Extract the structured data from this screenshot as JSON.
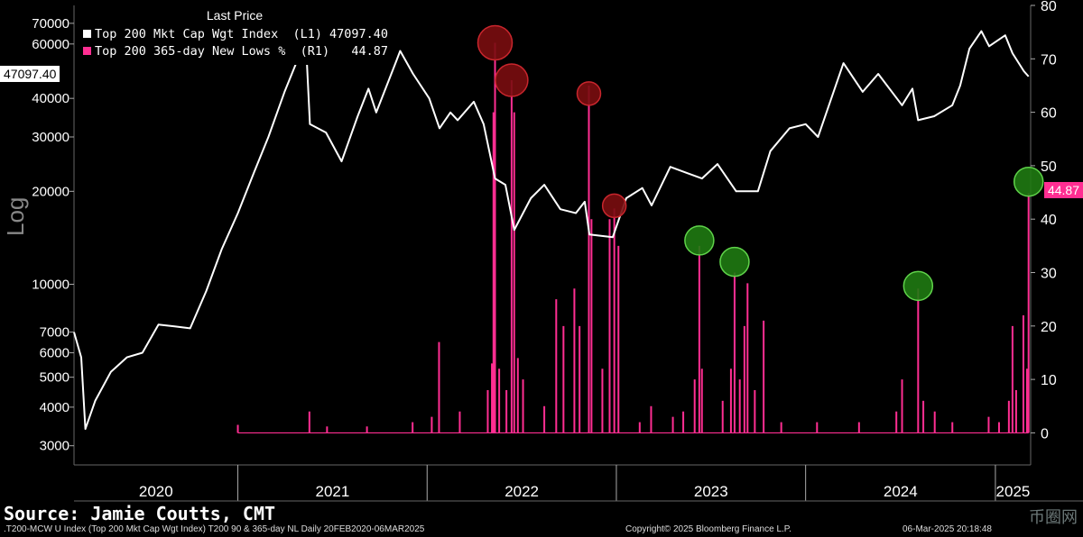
{
  "legend": {
    "header": "Last Price",
    "row1_label": "Top 200 Mkt Cap Wgt Index  (L1)",
    "row1_value": "47097.40",
    "row1_color": "#ffffff",
    "row2_label": "Top 200 365-day New Lows %  (R1)",
    "row2_value": "44.87",
    "row2_color": "#ff2e92"
  },
  "left_tag": "47097.40",
  "right_tag": "44.87",
  "log_label": "Log",
  "source": "Source: Jamie Coutts, CMT",
  "footer": {
    "left": ".T200-MCW U Index (Top 200 Mkt Cap Wgt Index) T200 90 & 365-day NL  Daily 20FEB2020-06MAR2025",
    "mid": "Copyright© 2025 Bloomberg Finance L.P.",
    "right": "06-Mar-2025 20:18:48"
  },
  "watermark": "币圈网",
  "chart_data": {
    "type": "line",
    "x_labels": [
      "2020",
      "2021",
      "2022",
      "2023",
      "2024",
      "2025"
    ],
    "y_left": {
      "label": "Log",
      "scale": "log",
      "ticks": [
        3000,
        4000,
        5000,
        6000,
        7000,
        10000,
        20000,
        30000,
        40000,
        60000,
        70000
      ],
      "range": [
        2600,
        80000
      ]
    },
    "y_right": {
      "ticks": [
        0,
        10,
        20,
        30,
        40,
        50,
        60,
        70,
        80
      ],
      "range": [
        -6,
        80
      ]
    },
    "series": [
      {
        "name": "Top 200 Mkt Cap Wgt Index (L1)",
        "color": "#ffffff",
        "axis": "left",
        "points": [
          [
            "2020-02-20",
            7000
          ],
          [
            "2020-03-05",
            5800
          ],
          [
            "2020-03-13",
            3400
          ],
          [
            "2020-04-01",
            4200
          ],
          [
            "2020-05-01",
            5200
          ],
          [
            "2020-06-01",
            5800
          ],
          [
            "2020-07-01",
            6000
          ],
          [
            "2020-08-01",
            7400
          ],
          [
            "2020-09-01",
            7300
          ],
          [
            "2020-10-01",
            7200
          ],
          [
            "2020-11-01",
            9500
          ],
          [
            "2020-12-01",
            13000
          ],
          [
            "2021-01-01",
            17000
          ],
          [
            "2021-02-01",
            23000
          ],
          [
            "2021-03-01",
            30000
          ],
          [
            "2021-04-01",
            42000
          ],
          [
            "2021-05-12",
            62000
          ],
          [
            "2021-05-20",
            33000
          ],
          [
            "2021-06-20",
            31000
          ],
          [
            "2021-07-20",
            25000
          ],
          [
            "2021-08-20",
            35000
          ],
          [
            "2021-09-10",
            43000
          ],
          [
            "2021-09-25",
            36000
          ],
          [
            "2021-11-01",
            52000
          ],
          [
            "2021-11-10",
            57000
          ],
          [
            "2021-12-05",
            48000
          ],
          [
            "2022-01-05",
            40000
          ],
          [
            "2022-01-25",
            32000
          ],
          [
            "2022-02-15",
            36000
          ],
          [
            "2022-03-01",
            34000
          ],
          [
            "2022-04-01",
            39000
          ],
          [
            "2022-04-20",
            33000
          ],
          [
            "2022-05-12",
            22000
          ],
          [
            "2022-06-01",
            21000
          ],
          [
            "2022-06-18",
            15000
          ],
          [
            "2022-07-20",
            19000
          ],
          [
            "2022-08-15",
            21000
          ],
          [
            "2022-09-15",
            17500
          ],
          [
            "2022-10-15",
            17000
          ],
          [
            "2022-11-01",
            18500
          ],
          [
            "2022-11-10",
            14500
          ],
          [
            "2022-12-25",
            14200
          ],
          [
            "2023-01-20",
            19000
          ],
          [
            "2023-02-20",
            20500
          ],
          [
            "2023-03-10",
            18000
          ],
          [
            "2023-04-15",
            24000
          ],
          [
            "2023-06-15",
            22000
          ],
          [
            "2023-07-15",
            24500
          ],
          [
            "2023-08-20",
            20000
          ],
          [
            "2023-10-01",
            20000
          ],
          [
            "2023-10-25",
            27000
          ],
          [
            "2023-12-01",
            32000
          ],
          [
            "2024-01-01",
            33000
          ],
          [
            "2024-01-25",
            30000
          ],
          [
            "2024-03-14",
            52000
          ],
          [
            "2024-04-20",
            42000
          ],
          [
            "2024-05-20",
            48000
          ],
          [
            "2024-07-05",
            38000
          ],
          [
            "2024-07-25",
            43000
          ],
          [
            "2024-08-05",
            34000
          ],
          [
            "2024-09-05",
            35000
          ],
          [
            "2024-10-10",
            38000
          ],
          [
            "2024-10-25",
            44000
          ],
          [
            "2024-11-12",
            58000
          ],
          [
            "2024-12-05",
            66000
          ],
          [
            "2024-12-20",
            59000
          ],
          [
            "2025-01-20",
            64000
          ],
          [
            "2025-02-03",
            56000
          ],
          [
            "2025-02-25",
            49000
          ],
          [
            "2025-03-06",
            47097.4
          ]
        ]
      },
      {
        "name": "Top 200 365-day New Lows % (R1)",
        "color": "#ff2e92",
        "axis": "right",
        "baseline_start": "2021-01-01",
        "spikes": [
          [
            "2021-01-01",
            1.5
          ],
          [
            "2021-05-19",
            4.0
          ],
          [
            "2021-06-22",
            1.2
          ],
          [
            "2021-09-07",
            1.2
          ],
          [
            "2021-12-04",
            2.0
          ],
          [
            "2022-01-10",
            3.0
          ],
          [
            "2022-01-24",
            17.0
          ],
          [
            "2022-03-05",
            4.0
          ],
          [
            "2022-04-28",
            8.0
          ],
          [
            "2022-05-06",
            13.0
          ],
          [
            "2022-05-09",
            60.0
          ],
          [
            "2022-05-12",
            73.0
          ],
          [
            "2022-05-20",
            12.0
          ],
          [
            "2022-06-03",
            8.0
          ],
          [
            "2022-06-13",
            66.0
          ],
          [
            "2022-06-18",
            60.0
          ],
          [
            "2022-06-25",
            14.0
          ],
          [
            "2022-07-05",
            10.0
          ],
          [
            "2022-08-15",
            5.0
          ],
          [
            "2022-09-07",
            25.0
          ],
          [
            "2022-09-21",
            20.0
          ],
          [
            "2022-10-12",
            27.0
          ],
          [
            "2022-10-22",
            20.0
          ],
          [
            "2022-11-09",
            65.0
          ],
          [
            "2022-11-14",
            40.0
          ],
          [
            "2022-12-05",
            12.0
          ],
          [
            "2022-12-19",
            40.0
          ],
          [
            "2022-12-28",
            42.0
          ],
          [
            "2023-01-05",
            35.0
          ],
          [
            "2023-02-15",
            2.0
          ],
          [
            "2023-03-09",
            5.0
          ],
          [
            "2023-04-20",
            3.0
          ],
          [
            "2023-05-10",
            4.0
          ],
          [
            "2023-06-01",
            10.0
          ],
          [
            "2023-06-10",
            35.0
          ],
          [
            "2023-06-15",
            12.0
          ],
          [
            "2023-07-25",
            6.0
          ],
          [
            "2023-08-10",
            12.0
          ],
          [
            "2023-08-17",
            30.0
          ],
          [
            "2023-08-27",
            10.0
          ],
          [
            "2023-09-05",
            20.0
          ],
          [
            "2023-09-11",
            28.0
          ],
          [
            "2023-09-25",
            8.0
          ],
          [
            "2023-10-12",
            21.0
          ],
          [
            "2023-11-15",
            2.0
          ],
          [
            "2024-01-23",
            2.0
          ],
          [
            "2024-04-13",
            2.0
          ],
          [
            "2024-06-24",
            4.0
          ],
          [
            "2024-07-05",
            10.0
          ],
          [
            "2024-08-05",
            27.0
          ],
          [
            "2024-08-15",
            6.0
          ],
          [
            "2024-09-06",
            4.0
          ],
          [
            "2024-10-10",
            2.0
          ],
          [
            "2024-12-19",
            3.0
          ],
          [
            "2025-01-08",
            2.0
          ],
          [
            "2025-01-27",
            6.0
          ],
          [
            "2025-02-03",
            20.0
          ],
          [
            "2025-02-10",
            8.0
          ],
          [
            "2025-02-24",
            22.0
          ],
          [
            "2025-03-03",
            12.0
          ],
          [
            "2025-03-06",
            44.87
          ]
        ]
      }
    ],
    "annotations": [
      {
        "type": "circle",
        "color": "red",
        "x": "2022-05-12",
        "y_right": 73.0
      },
      {
        "type": "circle",
        "color": "red",
        "x": "2022-06-13",
        "y_right": 66.0
      },
      {
        "type": "circle",
        "color": "red",
        "x": "2022-11-09",
        "y_right": 63.5
      },
      {
        "type": "circle",
        "color": "red",
        "x": "2022-12-28",
        "y_right": 42.5
      },
      {
        "type": "circle",
        "color": "green",
        "x": "2023-06-10",
        "y_right": 36.0
      },
      {
        "type": "circle",
        "color": "green",
        "x": "2023-08-17",
        "y_right": 32.0
      },
      {
        "type": "circle",
        "color": "green",
        "x": "2024-08-05",
        "y_right": 27.5
      },
      {
        "type": "circle",
        "color": "green",
        "x": "2025-03-06",
        "y_right": 47.0
      }
    ]
  }
}
